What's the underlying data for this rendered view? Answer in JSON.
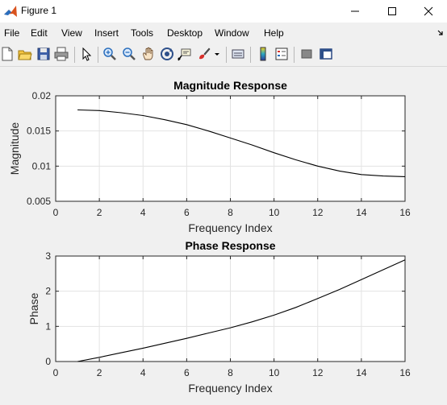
{
  "window": {
    "title": "Figure 1"
  },
  "menu": [
    "File",
    "Edit",
    "View",
    "Insert",
    "Tools",
    "Desktop",
    "Window",
    "Help"
  ],
  "toolbar_icons": [
    "new-figure-icon",
    "open-file-icon",
    "save-icon",
    "print-icon",
    "pointer-icon",
    "zoom-in-icon",
    "zoom-out-icon",
    "pan-icon",
    "rotate-3d-icon",
    "data-cursor-icon",
    "brush-icon",
    "brush-dropdown-icon",
    "link-plot-icon",
    "colorbar-icon",
    "legend-icon",
    "hide-plot-tools-icon",
    "show-plot-tools-icon"
  ],
  "chart_data": [
    {
      "type": "line",
      "title": "Magnitude Response",
      "xlabel": "Frequency Index",
      "ylabel": "Magnitude",
      "xlim": [
        0,
        16
      ],
      "ylim": [
        0.005,
        0.02
      ],
      "xticks": [
        "0",
        "2",
        "4",
        "6",
        "8",
        "10",
        "12",
        "14",
        "16"
      ],
      "yticks": [
        "0.005",
        "0.01",
        "0.015",
        "0.02"
      ],
      "grid": true,
      "x": [
        1,
        2,
        3,
        4,
        5,
        6,
        7,
        8,
        9,
        10,
        11,
        12,
        13,
        14,
        15,
        16
      ],
      "y": [
        0.018,
        0.0179,
        0.0176,
        0.0172,
        0.0166,
        0.0159,
        0.015,
        0.014,
        0.013,
        0.0119,
        0.0109,
        0.01,
        0.0093,
        0.0088,
        0.0086,
        0.0085
      ]
    },
    {
      "type": "line",
      "title": "Phase Response",
      "xlabel": "Frequency Index",
      "ylabel": "Phase",
      "xlim": [
        0,
        16
      ],
      "ylim": [
        0,
        3
      ],
      "xticks": [
        "0",
        "2",
        "4",
        "6",
        "8",
        "10",
        "12",
        "14",
        "16"
      ],
      "yticks": [
        "0",
        "1",
        "2",
        "3"
      ],
      "grid": true,
      "x": [
        1,
        2,
        3,
        4,
        5,
        6,
        7,
        8,
        9,
        10,
        11,
        12,
        13,
        14,
        15,
        16
      ],
      "y": [
        0.0,
        0.12,
        0.25,
        0.38,
        0.52,
        0.66,
        0.81,
        0.96,
        1.13,
        1.32,
        1.54,
        1.79,
        2.05,
        2.33,
        2.61,
        2.89
      ]
    }
  ]
}
